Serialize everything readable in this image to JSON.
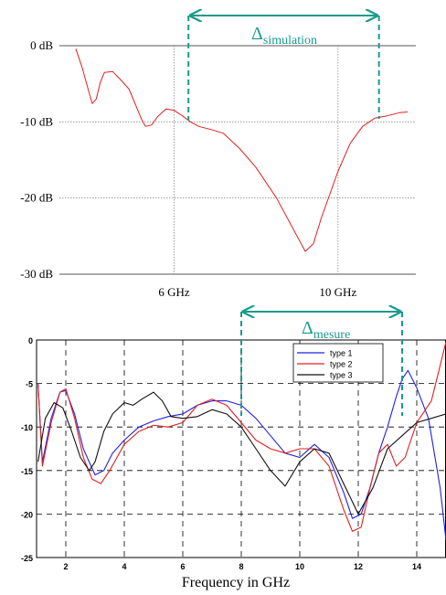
{
  "chart_data": [
    {
      "type": "line",
      "xlim": [
        3.2,
        11.9
      ],
      "ylim": [
        -30,
        0
      ],
      "y_ticks": [
        0,
        -10,
        -20,
        -30
      ],
      "y_tick_labels": [
        "0 dB",
        "-10 dB",
        "-20 dB",
        "-30 dB"
      ],
      "x_ticks": [
        6,
        10
      ],
      "x_tick_labels": [
        "6 GHz",
        "10 GHz"
      ],
      "grid": "dotted",
      "series": [
        {
          "color": "#e02020",
          "x": [
            3.6,
            3.75,
            3.9,
            4.0,
            4.1,
            4.2,
            4.3,
            4.5,
            4.7,
            4.9,
            5.1,
            5.2,
            5.3,
            5.45,
            5.6,
            5.8,
            6.0,
            6.2,
            6.4,
            6.6,
            6.9,
            7.2,
            7.6,
            8.0,
            8.5,
            9.0,
            9.2,
            9.4,
            9.6,
            9.8,
            10.0,
            10.3,
            10.6,
            10.9,
            11.2,
            11.5,
            11.7
          ],
          "y": [
            -0.4,
            -2.8,
            -5.7,
            -7.6,
            -7.0,
            -4.8,
            -3.5,
            -3.4,
            -4.5,
            -5.7,
            -8.3,
            -9.6,
            -10.6,
            -10.4,
            -9.3,
            -8.3,
            -8.5,
            -9.2,
            -10.0,
            -10.6,
            -11.0,
            -11.5,
            -13.5,
            -16.0,
            -20.0,
            -25.0,
            -27.0,
            -26.0,
            -22.5,
            -19.5,
            -16.5,
            -12.8,
            -10.6,
            -9.5,
            -9.2,
            -8.8,
            -8.7
          ]
        }
      ],
      "annotations": [
        {
          "symbol": "Δ",
          "subscript": "simulation",
          "x_from": 6.35,
          "x_to": 11.0,
          "color": "#1a9a8c"
        }
      ]
    },
    {
      "type": "line",
      "xlim": [
        1,
        15
      ],
      "ylim": [
        -25,
        0
      ],
      "y_ticks": [
        0,
        -5,
        -10,
        -15,
        -20,
        -25
      ],
      "x_ticks": [
        2,
        4,
        6,
        8,
        10,
        12,
        14
      ],
      "xlabel": "Frequency in GHz",
      "grid": "dashed",
      "legend": "top-right",
      "series": [
        {
          "name": "type 1",
          "color": "#2020e0",
          "x": [
            1.05,
            1.2,
            1.5,
            1.8,
            2.0,
            2.3,
            2.6,
            3.0,
            3.3,
            3.6,
            4.0,
            4.5,
            5.0,
            5.5,
            6.0,
            6.5,
            7.0,
            7.5,
            8.0,
            8.5,
            9.0,
            9.5,
            10.0,
            10.5,
            11.0,
            11.5,
            11.8,
            12.1,
            12.4,
            12.7,
            13.0,
            13.3,
            13.5,
            13.7,
            14.0,
            14.4,
            14.8,
            15.0
          ],
          "y": [
            -5.0,
            -14.0,
            -9.0,
            -6.0,
            -5.8,
            -8.5,
            -12.5,
            -15.5,
            -15.0,
            -13.0,
            -11.5,
            -10.0,
            -9.3,
            -8.8,
            -8.5,
            -7.5,
            -7.0,
            -7.0,
            -7.5,
            -9.0,
            -11.0,
            -13.0,
            -13.5,
            -12.0,
            -13.5,
            -17.5,
            -20.5,
            -20.0,
            -17.0,
            -13.0,
            -10.0,
            -6.5,
            -4.5,
            -3.5,
            -5.5,
            -9.0,
            -17.0,
            -23.0
          ]
        },
        {
          "name": "type 2",
          "color": "#e02020",
          "x": [
            1.05,
            1.2,
            1.5,
            1.8,
            2.0,
            2.3,
            2.6,
            2.9,
            3.2,
            3.5,
            4.0,
            4.5,
            5.0,
            5.5,
            6.0,
            6.5,
            7.0,
            7.5,
            8.0,
            8.5,
            9.0,
            9.5,
            10.0,
            10.5,
            11.0,
            11.5,
            11.8,
            12.1,
            12.4,
            12.7,
            13.0,
            13.3,
            13.6,
            14.0,
            14.5,
            15.0
          ],
          "y": [
            -5.0,
            -14.5,
            -9.5,
            -6.0,
            -5.6,
            -9.0,
            -13.5,
            -16.0,
            -16.5,
            -15.0,
            -12.0,
            -10.5,
            -9.8,
            -10.0,
            -9.5,
            -7.5,
            -6.8,
            -7.5,
            -9.5,
            -11.5,
            -12.5,
            -13.0,
            -12.5,
            -12.5,
            -14.5,
            -19.5,
            -22.0,
            -21.5,
            -17.0,
            -13.0,
            -12.0,
            -14.5,
            -13.5,
            -9.5,
            -7.0,
            -0.2
          ]
        },
        {
          "name": "type 3",
          "color": "#101010",
          "x": [
            1.05,
            1.3,
            1.6,
            1.9,
            2.2,
            2.5,
            2.8,
            3.0,
            3.3,
            3.6,
            4.0,
            4.3,
            4.6,
            5.0,
            5.3,
            5.6,
            6.0,
            6.5,
            7.0,
            7.5,
            8.0,
            8.5,
            9.0,
            9.5,
            10.0,
            10.5,
            11.0,
            11.5,
            12.0,
            12.5,
            13.0,
            13.5,
            14.0,
            14.5,
            15.0
          ],
          "y": [
            -14.0,
            -9.0,
            -7.2,
            -7.8,
            -10.5,
            -13.5,
            -15.0,
            -14.0,
            -10.5,
            -8.5,
            -7.2,
            -7.5,
            -6.8,
            -6.0,
            -7.0,
            -8.8,
            -9.0,
            -8.8,
            -8.0,
            -8.5,
            -10.0,
            -12.5,
            -15.0,
            -16.8,
            -14.0,
            -12.5,
            -13.0,
            -16.5,
            -20.0,
            -17.0,
            -12.5,
            -11.0,
            -9.5,
            -9.0,
            -8.5
          ]
        }
      ],
      "annotations": [
        {
          "symbol": "Δ",
          "subscript": "mesure",
          "x_from": 8.0,
          "x_to": 13.5,
          "color": "#1a9a8c"
        }
      ]
    }
  ]
}
